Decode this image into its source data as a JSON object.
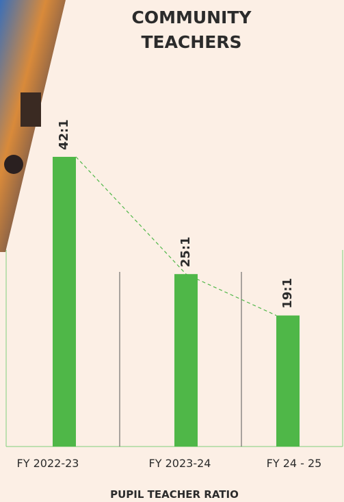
{
  "chart_data": {
    "type": "bar",
    "title_lines": [
      "COMMUNITY",
      "TEACHERS"
    ],
    "categories": [
      "FY 2022-23",
      "FY 2023-24",
      "FY 24 - 25"
    ],
    "values": [
      42,
      25,
      19
    ],
    "value_labels": [
      "42:1",
      "25:1",
      "19:1"
    ],
    "color": "#4fb748",
    "x_label": "PUPIL TEACHER RATIO"
  }
}
